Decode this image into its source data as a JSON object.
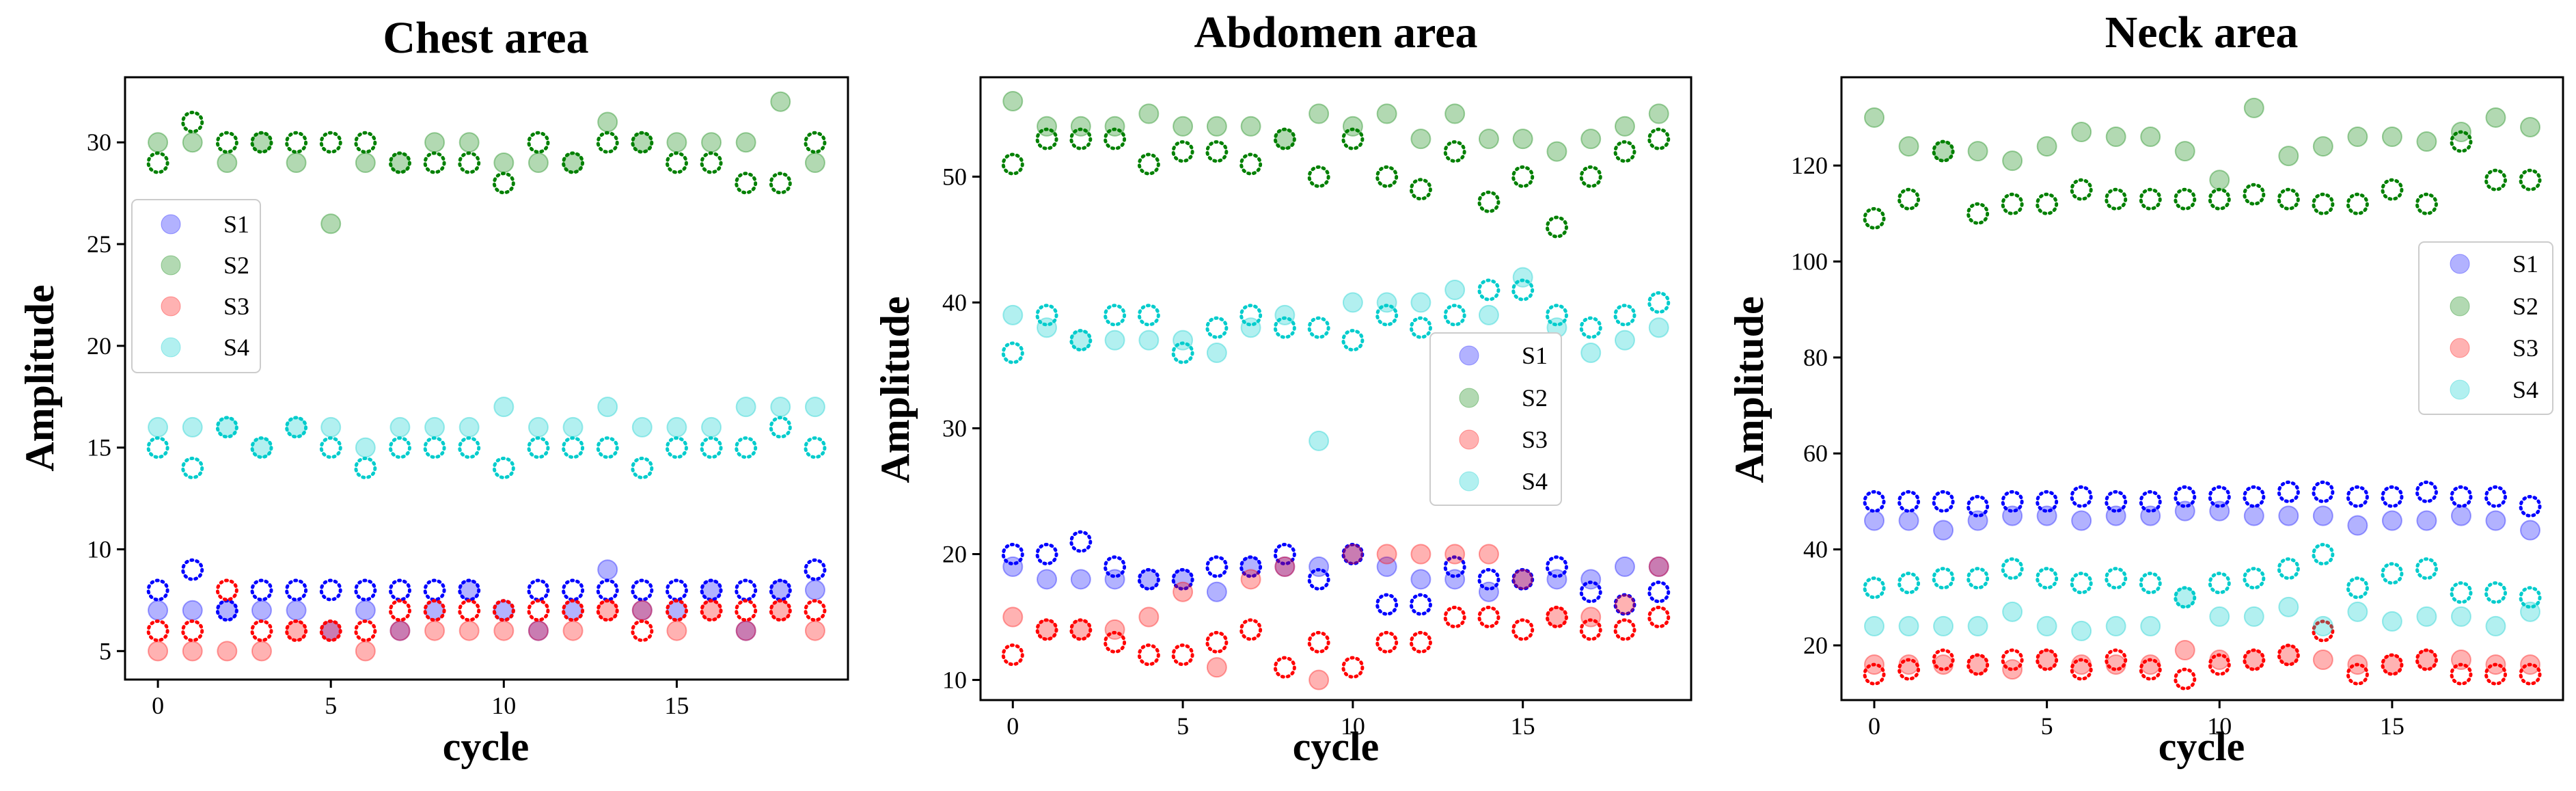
{
  "colors": {
    "S1": "#0000ff",
    "S2": "#008000",
    "S3": "#ff0000",
    "S4": "#00cccc"
  },
  "chart_data": [
    {
      "type": "scatter",
      "title": "Chest area",
      "xlabel": "cycle",
      "ylabel": "Amplitude",
      "xlim": [
        -0.95,
        19.95
      ],
      "ylim": [
        3.6,
        33.2
      ],
      "xticks": [
        0,
        5,
        10,
        15
      ],
      "yticks": [
        5,
        10,
        15,
        20,
        25,
        30
      ],
      "legend_position": "center-left",
      "series": [
        {
          "name": "S1",
          "values": [
            7,
            7,
            7,
            7,
            7,
            6,
            7,
            6,
            7,
            8,
            7,
            6,
            7,
            9,
            7,
            7,
            8,
            6,
            8,
            8
          ],
          "dotted": [
            8,
            9,
            7,
            8,
            8,
            8,
            8,
            8,
            8,
            8,
            7,
            8,
            8,
            8,
            8,
            8,
            8,
            8,
            8,
            9
          ]
        },
        {
          "name": "S2",
          "values": [
            30,
            30,
            29,
            30,
            29,
            26,
            29,
            29,
            30,
            30,
            29,
            29,
            29,
            31,
            30,
            30,
            30,
            30,
            32,
            29
          ],
          "dotted": [
            29,
            31,
            30,
            30,
            30,
            30,
            30,
            29,
            29,
            29,
            28,
            30,
            29,
            30,
            30,
            29,
            29,
            28,
            28,
            30
          ]
        },
        {
          "name": "S3",
          "values": [
            5,
            5,
            5,
            5,
            6,
            6,
            5,
            6,
            6,
            6,
            6,
            6,
            6,
            7,
            7,
            6,
            7,
            6,
            7,
            6
          ],
          "dotted": [
            6,
            6,
            8,
            6,
            6,
            6,
            6,
            7,
            7,
            7,
            7,
            7,
            7,
            7,
            6,
            7,
            7,
            7,
            7,
            7
          ]
        },
        {
          "name": "S4",
          "values": [
            16,
            16,
            16,
            15,
            16,
            16,
            15,
            16,
            16,
            16,
            17,
            16,
            16,
            17,
            16,
            16,
            16,
            17,
            17,
            17
          ],
          "dotted": [
            15,
            14,
            16,
            15,
            16,
            15,
            14,
            15,
            15,
            15,
            14,
            15,
            15,
            15,
            14,
            15,
            15,
            15,
            16,
            15
          ]
        }
      ]
    },
    {
      "type": "scatter",
      "title": "Abdomen area",
      "xlabel": "cycle",
      "ylabel": "Amplitude",
      "xlim": [
        -0.95,
        19.95
      ],
      "ylim": [
        8.4,
        57.9
      ],
      "xticks": [
        0,
        5,
        10,
        15
      ],
      "yticks": [
        10,
        20,
        30,
        40,
        50
      ],
      "legend_position": "center-right",
      "series": [
        {
          "name": "S1",
          "values": [
            19,
            18,
            18,
            18,
            18,
            18,
            17,
            19,
            19,
            19,
            20,
            19,
            18,
            18,
            17,
            18,
            18,
            18,
            19,
            19
          ],
          "dotted": [
            20,
            20,
            21,
            19,
            18,
            18,
            19,
            19,
            20,
            18,
            20,
            16,
            16,
            19,
            18,
            18,
            19,
            17,
            16,
            17
          ]
        },
        {
          "name": "S2",
          "values": [
            56,
            54,
            54,
            54,
            55,
            54,
            54,
            54,
            53,
            55,
            54,
            55,
            53,
            55,
            53,
            53,
            52,
            53,
            54,
            55
          ],
          "dotted": [
            51,
            53,
            53,
            53,
            51,
            52,
            52,
            51,
            53,
            50,
            53,
            50,
            49,
            52,
            48,
            50,
            46,
            50,
            52,
            53
          ]
        },
        {
          "name": "S3",
          "values": [
            15,
            14,
            14,
            14,
            15,
            17,
            11,
            18,
            19,
            10,
            20,
            20,
            20,
            20,
            20,
            18,
            15,
            15,
            16,
            19
          ],
          "dotted": [
            12,
            14,
            14,
            13,
            12,
            12,
            13,
            14,
            11,
            13,
            11,
            13,
            13,
            15,
            15,
            14,
            15,
            14,
            14,
            15
          ]
        },
        {
          "name": "S4",
          "values": [
            39,
            38,
            37,
            37,
            37,
            37,
            36,
            38,
            39,
            29,
            40,
            40,
            40,
            41,
            39,
            42,
            38,
            36,
            37,
            38
          ],
          "dotted": [
            36,
            39,
            37,
            39,
            39,
            36,
            38,
            39,
            38,
            38,
            37,
            39,
            38,
            39,
            41,
            41,
            39,
            38,
            39,
            40
          ]
        }
      ]
    },
    {
      "type": "scatter",
      "title": "Neck area",
      "xlabel": "cycle",
      "ylabel": "Amplitude",
      "xlim": [
        -0.95,
        19.95
      ],
      "ylim": [
        8.6,
        138.4
      ],
      "xticks": [
        0,
        5,
        10,
        15
      ],
      "yticks": [
        20,
        40,
        60,
        80,
        100,
        120
      ],
      "legend_position": "center-right",
      "series": [
        {
          "name": "S1",
          "values": [
            46,
            46,
            44,
            46,
            47,
            47,
            46,
            47,
            47,
            48,
            48,
            47,
            47,
            47,
            45,
            46,
            46,
            47,
            46,
            44
          ],
          "dotted": [
            50,
            50,
            50,
            49,
            50,
            50,
            51,
            50,
            50,
            51,
            51,
            51,
            52,
            52,
            51,
            51,
            52,
            51,
            51,
            49
          ]
        },
        {
          "name": "S2",
          "values": [
            130,
            124,
            123,
            123,
            121,
            124,
            127,
            126,
            126,
            123,
            117,
            132,
            122,
            124,
            126,
            126,
            125,
            127,
            130,
            128
          ],
          "dotted": [
            109,
            113,
            123,
            110,
            112,
            112,
            115,
            113,
            113,
            113,
            113,
            114,
            113,
            112,
            112,
            115,
            112,
            125,
            117,
            117
          ]
        },
        {
          "name": "S3",
          "values": [
            16,
            16,
            16,
            16,
            15,
            17,
            16,
            16,
            16,
            19,
            17,
            17,
            18,
            17,
            16,
            16,
            17,
            17,
            16,
            16
          ],
          "dotted": [
            14,
            15,
            17,
            16,
            17,
            17,
            15,
            17,
            15,
            13,
            16,
            17,
            18,
            23,
            14,
            16,
            17,
            14,
            14,
            14
          ]
        },
        {
          "name": "S4",
          "values": [
            24,
            24,
            24,
            24,
            27,
            24,
            23,
            24,
            24,
            30,
            26,
            26,
            28,
            24,
            27,
            25,
            26,
            26,
            24,
            27
          ],
          "dotted": [
            32,
            33,
            34,
            34,
            36,
            34,
            33,
            34,
            33,
            30,
            33,
            34,
            36,
            39,
            32,
            35,
            36,
            31,
            31,
            30
          ]
        }
      ]
    }
  ]
}
